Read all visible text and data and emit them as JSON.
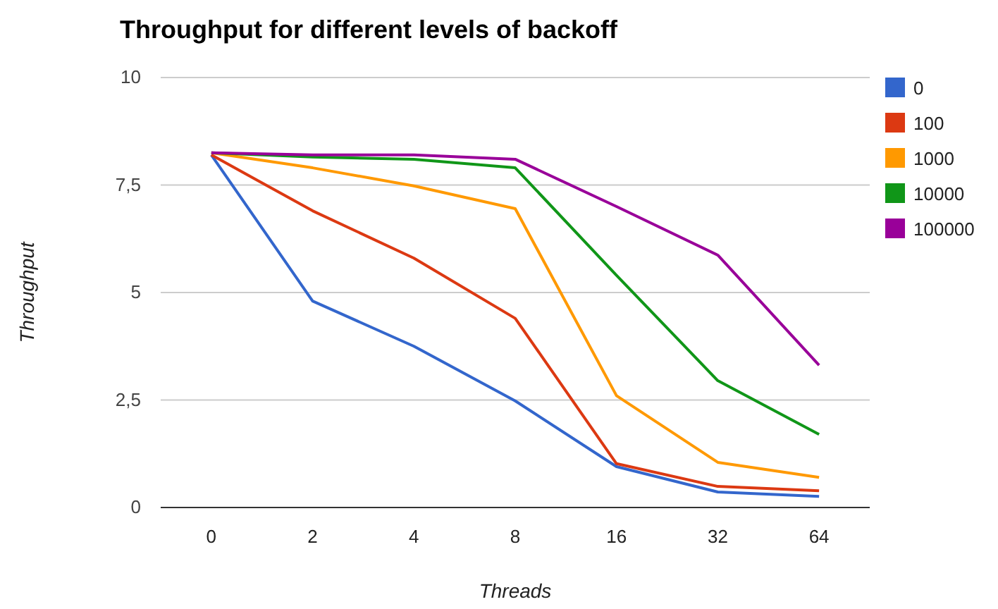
{
  "chart_data": {
    "type": "line",
    "title": "Throughput for different levels of backoff",
    "xlabel": "Threads",
    "ylabel": "Throughput",
    "categories": [
      "0",
      "2",
      "4",
      "8",
      "16",
      "32",
      "64"
    ],
    "series": [
      {
        "name": "0",
        "color": "#3366cc",
        "values": [
          8.2,
          4.8,
          3.75,
          2.48,
          0.95,
          0.36,
          0.26
        ]
      },
      {
        "name": "100",
        "color": "#dc3912",
        "values": [
          8.2,
          6.9,
          5.8,
          4.4,
          1.02,
          0.49,
          0.39
        ]
      },
      {
        "name": "1000",
        "color": "#ff9900",
        "values": [
          8.25,
          7.9,
          7.48,
          6.95,
          2.6,
          1.05,
          0.7
        ]
      },
      {
        "name": "10000",
        "color": "#109618",
        "values": [
          8.25,
          8.15,
          8.1,
          7.9,
          5.4,
          2.95,
          1.7
        ]
      },
      {
        "name": "100000",
        "color": "#990099",
        "values": [
          8.25,
          8.2,
          8.2,
          8.1,
          7.0,
          5.87,
          3.31
        ]
      }
    ],
    "ylim": [
      0,
      10
    ],
    "yticks": [
      0,
      {
        "value": 2.5,
        "label": "2,5"
      },
      5,
      {
        "value": 7.5,
        "label": "7,5"
      },
      10
    ],
    "grid": "y",
    "legend": "right",
    "marker": "none",
    "line_style": "solid"
  }
}
